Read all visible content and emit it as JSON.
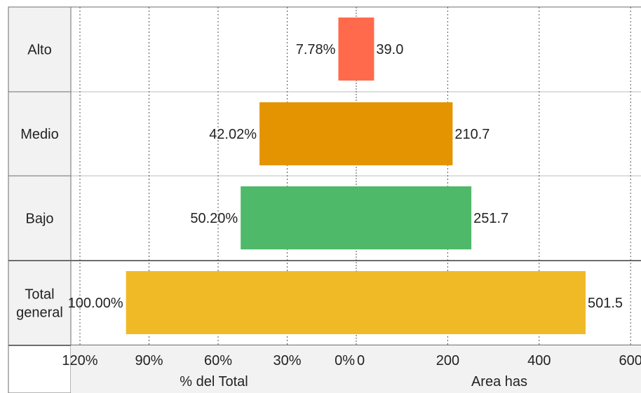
{
  "chart_data": {
    "type": "bar",
    "orientation": "horizontal",
    "categories": [
      "Alto",
      "Medio",
      "Bajo",
      "Total general"
    ],
    "category_labels": [
      [
        "Alto"
      ],
      [
        "Medio"
      ],
      [
        "Bajo"
      ],
      [
        "Total",
        "general"
      ]
    ],
    "series": [
      {
        "values": [
          7.78,
          42.02,
          50.2,
          100.0
        ],
        "value_labels": [
          "7.78%",
          "42.02%",
          "50.20%",
          "100.00%"
        ],
        "axis_title": "% del Total",
        "ticks": [
          {
            "value": 120,
            "label": "120%"
          },
          {
            "value": 90,
            "label": "90%"
          },
          {
            "value": 60,
            "label": "60%"
          },
          {
            "value": 30,
            "label": "30%"
          },
          {
            "value": 0,
            "label": "0%"
          }
        ]
      },
      {
        "values": [
          39.0,
          210.7,
          251.7,
          501.5
        ],
        "value_labels": [
          "39.0",
          "210.7",
          "251.7",
          "501.5"
        ],
        "axis_title": "Area has",
        "ticks": [
          {
            "value": 0,
            "label": "0"
          },
          {
            "value": 200,
            "label": "200"
          },
          {
            "value": 400,
            "label": "400"
          },
          {
            "value": 600,
            "label": "600"
          }
        ]
      }
    ],
    "colors": [
      "#ff6a4d",
      "#e39400",
      "#4fb96a",
      "#f0ba26"
    ],
    "grid": true,
    "legend": "none"
  }
}
